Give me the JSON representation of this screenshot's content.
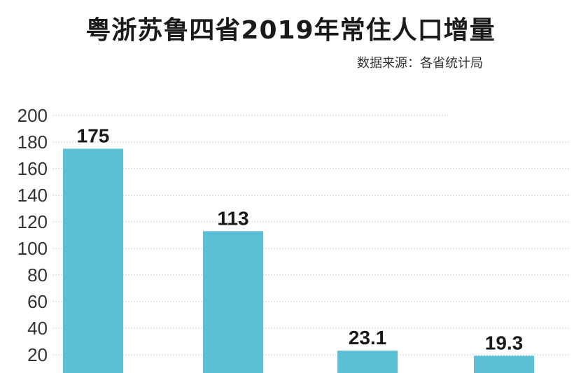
{
  "title": "粤浙苏鲁四省2019年常住人口增量",
  "source": "数据来源：各省统计局",
  "colors": {
    "bar": "#5bbfd6",
    "grid": "#d0d0d0",
    "text": "#1a1a1a"
  },
  "chart_data": {
    "type": "bar",
    "title": "粤浙苏鲁四省2019年常住人口增量",
    "xlabel": "",
    "ylabel": "",
    "ylim": [
      0,
      200
    ],
    "yticks": [
      20,
      40,
      60,
      80,
      100,
      120,
      140,
      160,
      180,
      200
    ],
    "grid": true,
    "categories": [
      "",
      "",
      "",
      ""
    ],
    "values": [
      175,
      113,
      23.1,
      19.3
    ],
    "data_labels": [
      "175",
      "113",
      "23.1",
      "19.3"
    ]
  }
}
